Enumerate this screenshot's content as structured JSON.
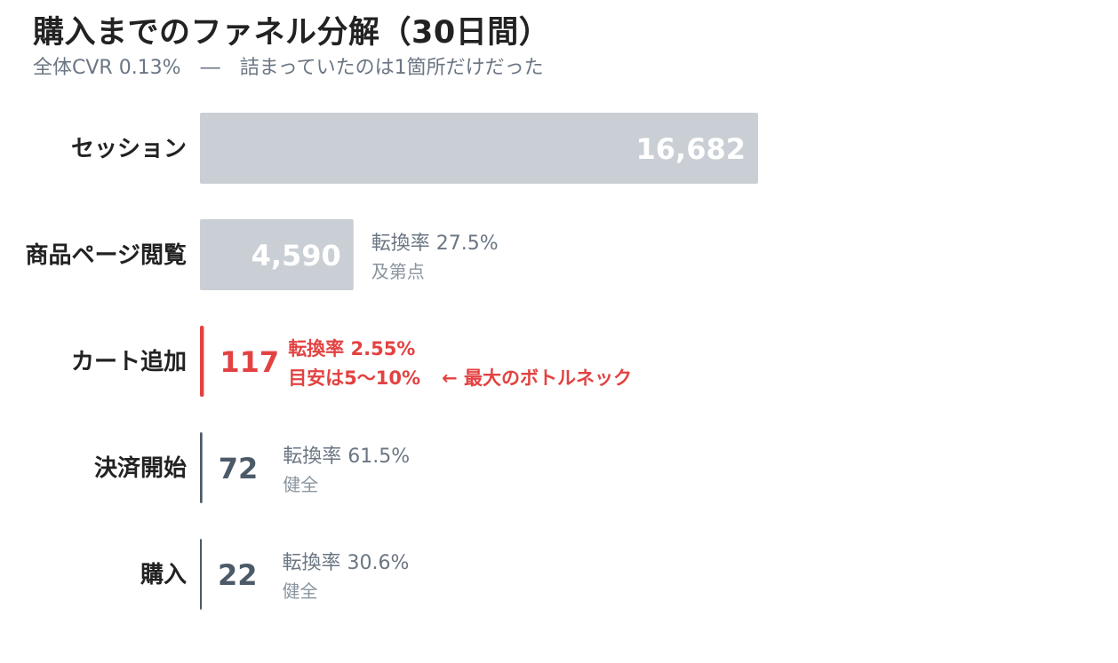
{
  "title": "購入までのファネル分解（30日間）",
  "subtitle": "全体CVR 0.13%　―　詰まっていたのは1箇所だけだった",
  "colors": {
    "muted_bar": "#c9cfd4",
    "bottleneck": "#e34242",
    "healthy_bar": "#4c5a68",
    "annotation_gray": "#6b7683",
    "annotation_light": "#8a949e",
    "label": "#222222"
  },
  "chart_data": {
    "type": "bar",
    "orientation": "horizontal",
    "title": "購入までのファネル分解（30日間）",
    "subtitle": "全体CVR 0.13%　―　詰まっていたのは1箇所だけだった",
    "categories": [
      "セッション",
      "商品ページ閲覧",
      "カート追加",
      "決済開始",
      "購入"
    ],
    "values": [
      16682,
      4590,
      117,
      72,
      22
    ],
    "value_labels": [
      "16,682",
      "4,590",
      "117",
      "72",
      "22"
    ],
    "annotations": [
      null,
      {
        "rate": "転換率 27.5%",
        "note": "及第点"
      },
      {
        "rate": "転換率 2.55%",
        "note": "目安は5〜10%",
        "callout": "← 最大のボトルネック"
      },
      {
        "rate": "転換率 61.5%",
        "note": "健全"
      },
      {
        "rate": "転換率 30.6%",
        "note": "健全"
      }
    ],
    "bar_colors": [
      "#c9cfd4",
      "#c9cfd4",
      "#e34242",
      "#4c5a68",
      "#4c5a68"
    ],
    "highlight_index": 2,
    "grid": false,
    "legend": false
  }
}
